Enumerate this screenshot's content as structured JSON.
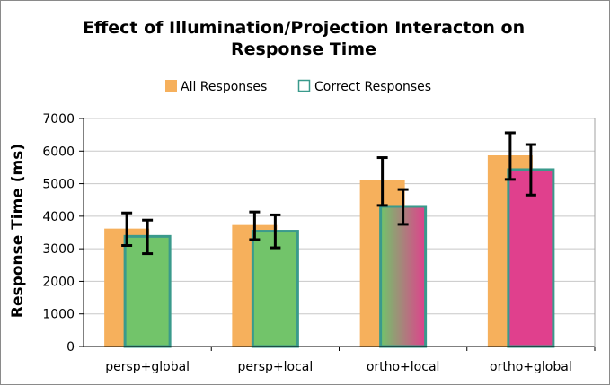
{
  "chart_data": {
    "type": "bar",
    "title_lines": [
      "Effect of Illumination/Projection Interacton on",
      "Response Time"
    ],
    "xlabel": "",
    "ylabel": "Response Time (ms)",
    "ylim": [
      0,
      7000
    ],
    "yticks": [
      0,
      1000,
      2000,
      3000,
      4000,
      5000,
      6000,
      7000
    ],
    "grid": true,
    "legend_position": "top",
    "categories": [
      "persp+global",
      "persp+local",
      "ortho+local",
      "ortho+global"
    ],
    "series": [
      {
        "name": "All Responses",
        "values": [
          3620,
          3730,
          5100,
          5870
        ],
        "error_low": [
          3100,
          3280,
          4330,
          5130
        ],
        "error_high": [
          4100,
          4130,
          5800,
          6560
        ]
      },
      {
        "name": "Correct Responses",
        "values": [
          3380,
          3540,
          4300,
          5430
        ],
        "error_low": [
          2850,
          3030,
          3750,
          4650
        ],
        "error_high": [
          3880,
          4040,
          4820,
          6200
        ]
      }
    ],
    "colors": {
      "all_responses": "#f6b05c",
      "correct_fill_green": "#72c46a",
      "correct_fill_pink": "#e0408d",
      "correct_border": "#3a9a8c",
      "error_bar": "#000000",
      "grid": "#c8c8c8"
    }
  }
}
